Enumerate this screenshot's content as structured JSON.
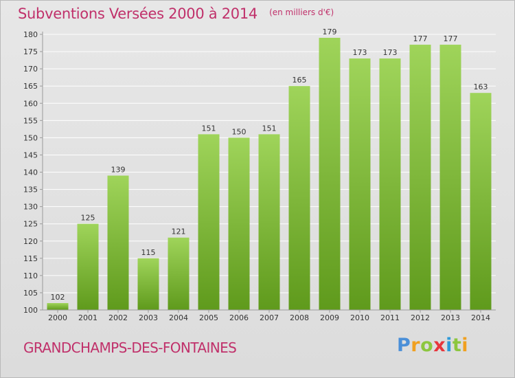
{
  "header": {
    "title": "Subventions Versées 2000 à 2014",
    "subtitle": "(en milliers d'€)"
  },
  "footer": {
    "commune": "GRANDCHAMPS-DES-FONTAINES",
    "logo_text": "Proxiti"
  },
  "colors": {
    "title": "#c0306a",
    "bar_top": "#9fd45a",
    "bar_bottom": "#5f9a1c",
    "grid": "#ffffff",
    "axis_text": "#333333"
  },
  "chart_data": {
    "type": "bar",
    "title": "Subventions Versées 2000 à 2014",
    "subtitle": "(en milliers d'€)",
    "xlabel": "",
    "ylabel": "",
    "categories": [
      "2000",
      "2001",
      "2002",
      "2003",
      "2004",
      "2005",
      "2006",
      "2007",
      "2008",
      "2009",
      "2010",
      "2011",
      "2012",
      "2013",
      "2014"
    ],
    "values": [
      102,
      125,
      139,
      115,
      121,
      151,
      150,
      151,
      165,
      179,
      173,
      173,
      177,
      177,
      163
    ],
    "ylim": [
      100,
      180
    ],
    "yticks": [
      100,
      105,
      110,
      115,
      120,
      125,
      130,
      135,
      140,
      145,
      150,
      155,
      160,
      165,
      170,
      175,
      180
    ],
    "grid": true,
    "data_labels": true
  }
}
